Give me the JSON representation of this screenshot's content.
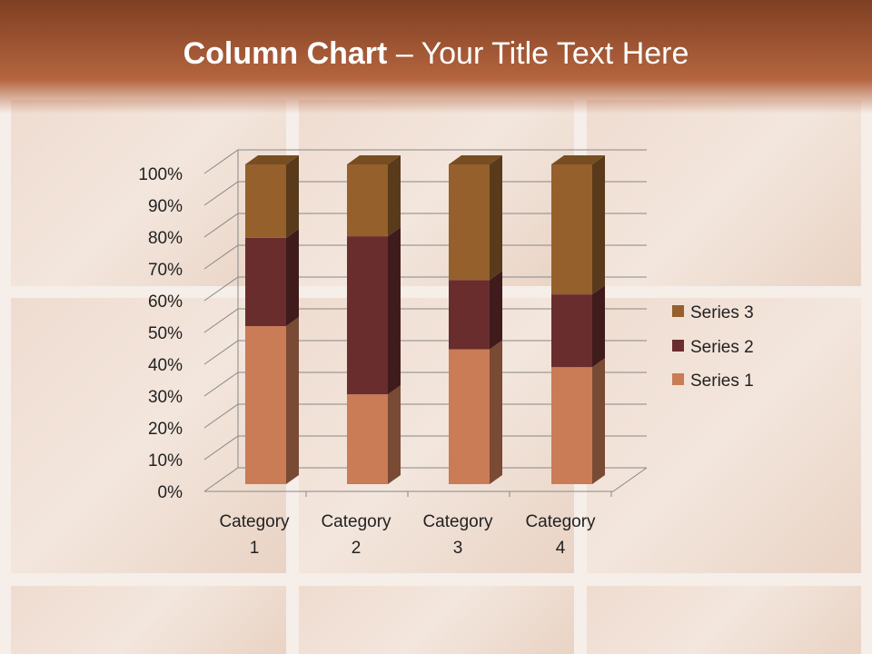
{
  "slide": {
    "title_bold": "Column Chart",
    "title_rest": " – Your Title Text Here"
  },
  "chart_data": {
    "type": "bar",
    "subtype": "3d-100%-stacked-column",
    "categories": [
      [
        "Category",
        "1"
      ],
      [
        "Category",
        "2"
      ],
      [
        "Category",
        "3"
      ],
      [
        "Category",
        "4"
      ]
    ],
    "series": [
      {
        "name": "Series 1",
        "values": [
          4.3,
          2.5,
          3.5,
          4.5
        ],
        "color": "#c97c56"
      },
      {
        "name": "Series 2",
        "values": [
          2.4,
          4.4,
          1.8,
          2.8
        ],
        "color": "#6a2d2e"
      },
      {
        "name": "Series 3",
        "values": [
          2,
          2,
          3,
          5
        ],
        "color": "#95602b"
      }
    ],
    "yticks": [
      "0%",
      "10%",
      "20%",
      "30%",
      "40%",
      "50%",
      "60%",
      "70%",
      "80%",
      "90%",
      "100%"
    ],
    "ylim": [
      0,
      100
    ],
    "grid": true,
    "legend": "right"
  }
}
